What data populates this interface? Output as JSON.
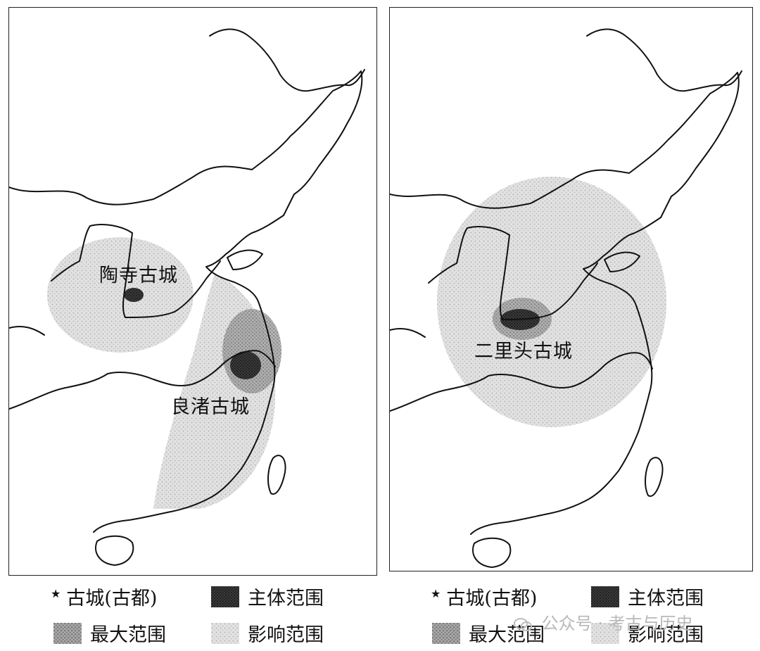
{
  "left_map": {
    "cities": [
      {
        "id": "taosi",
        "label": "陶寺古城"
      },
      {
        "id": "liangzhu",
        "label": "良渚古城"
      }
    ]
  },
  "right_map": {
    "cities": [
      {
        "id": "erlitou",
        "label": "二里头古城"
      }
    ]
  },
  "legend_left": {
    "capital": "古城(古都)",
    "core": "主体范围",
    "max": "最大范围",
    "influence": "影响范围"
  },
  "legend_right": {
    "capital": "古城(古都)",
    "core": "主体范围",
    "max": "最大范围",
    "influence": "影响范围"
  },
  "watermark": "公众号 · 考古与历史",
  "colors": {
    "core": "#2b2b2b",
    "max": "#8c8c8c",
    "influence": "#d4d4d4",
    "outline": "#111111"
  }
}
